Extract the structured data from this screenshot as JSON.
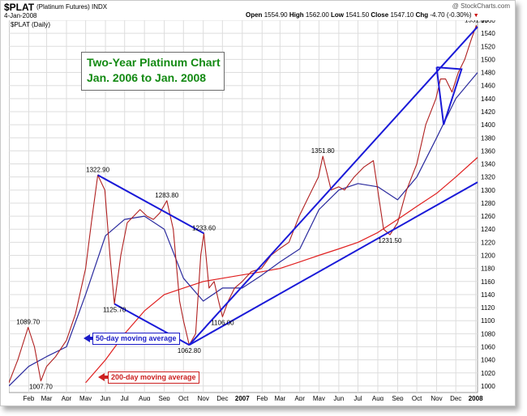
{
  "header": {
    "symbol": "$PLAT",
    "full_name": "(Platinum Futures)",
    "exchange": "INDX",
    "date": "4-Jan-2008",
    "open_label": "Open",
    "open_value": "1554.90",
    "high_label": "High",
    "high_value": "1562.00",
    "low_label": "Low",
    "low_value": "1541.50",
    "close_label": "Close",
    "close_value": "1547.10",
    "chg_label": "Chg",
    "chg_value": "-4.70 (-0.30%)",
    "watermark": "@ StockCharts.com",
    "series_label": "$PLAT (Daily)"
  },
  "annotations": {
    "title_line1": "Two-Year Platinum Chart",
    "title_line2": "Jan. 2006 to Jan. 2008",
    "ma50_label": "50-day moving average",
    "ma200_label": "200-day moving average"
  },
  "colors": {
    "price": "#b02020",
    "ma50": "#2a2a9e",
    "ma200": "#e02020",
    "trendline": "#1a1ad8",
    "title": "#138a13",
    "grid": "#dddddd"
  },
  "chart_data": {
    "type": "line",
    "title": "$PLAT (Daily)",
    "x_axis": {
      "tick_labels": [
        "Feb",
        "Mar",
        "Apr",
        "May",
        "Jun",
        "Jul",
        "Aug",
        "Sep",
        "Oct",
        "Nov",
        "Dec",
        "2007",
        "Feb",
        "Mar",
        "Apr",
        "May",
        "Jun",
        "Jul",
        "Aug",
        "Sep",
        "Oct",
        "Nov",
        "Dec",
        "2008"
      ],
      "range": [
        "2006-01-01",
        "2008-01-04"
      ]
    },
    "y_axis": {
      "position": "right",
      "ylim": [
        990,
        1560
      ],
      "ticks": [
        1000,
        1020,
        1040,
        1060,
        1080,
        1100,
        1120,
        1140,
        1160,
        1180,
        1200,
        1220,
        1240,
        1260,
        1280,
        1300,
        1320,
        1340,
        1360,
        1380,
        1400,
        1420,
        1440,
        1460,
        1480,
        1500,
        1520,
        1540,
        1560
      ]
    },
    "grid": true,
    "series": [
      {
        "role": "price",
        "x": [
          "2006-01-01",
          "2006-01-15",
          "2006-01-31",
          "2006-02-10",
          "2006-02-20",
          "2006-03-01",
          "2006-03-15",
          "2006-04-01",
          "2006-04-15",
          "2006-05-01",
          "2006-05-10",
          "2006-05-20",
          "2006-05-31",
          "2006-06-08",
          "2006-06-15",
          "2006-06-25",
          "2006-07-05",
          "2006-07-15",
          "2006-07-25",
          "2006-08-05",
          "2006-08-15",
          "2006-08-25",
          "2006-09-05",
          "2006-09-15",
          "2006-09-25",
          "2006-10-01",
          "2006-10-10",
          "2006-10-20",
          "2006-10-28",
          "2006-11-02",
          "2006-11-10",
          "2006-11-18",
          "2006-11-25",
          "2006-12-01",
          "2006-12-10",
          "2006-12-20",
          "2007-01-01",
          "2007-01-15",
          "2007-01-31",
          "2007-02-15",
          "2007-02-28",
          "2007-03-15",
          "2007-03-31",
          "2007-04-15",
          "2007-04-30",
          "2007-05-07",
          "2007-05-20",
          "2007-06-01",
          "2007-06-10",
          "2007-06-25",
          "2007-07-10",
          "2007-07-25",
          "2007-08-10",
          "2007-08-20",
          "2007-09-01",
          "2007-09-15",
          "2007-10-01",
          "2007-10-15",
          "2007-10-31",
          "2007-11-07",
          "2007-11-15",
          "2007-11-25",
          "2007-12-05",
          "2007-12-15",
          "2007-12-25",
          "2008-01-02",
          "2008-01-04"
        ],
        "values": [
          1005,
          1040,
          1089.7,
          1060,
          1007.7,
          1030,
          1045,
          1070,
          1110,
          1180,
          1250,
          1322.9,
          1300,
          1200,
          1125.7,
          1200,
          1250,
          1260,
          1270,
          1260,
          1255,
          1265,
          1283.8,
          1240,
          1130,
          1100,
          1062.8,
          1080,
          1200,
          1233.6,
          1150,
          1160,
          1130,
          1106,
          1130,
          1150,
          1160,
          1175,
          1180,
          1200,
          1210,
          1220,
          1260,
          1290,
          1320,
          1351.8,
          1300,
          1305,
          1300,
          1320,
          1335,
          1345,
          1240,
          1231.5,
          1250,
          1300,
          1340,
          1400,
          1440,
          1470,
          1470,
          1450,
          1480,
          1500,
          1530,
          1551.8,
          1547.1
        ]
      },
      {
        "name": "50-day moving average",
        "x": [
          "2006-01-01",
          "2006-02-01",
          "2006-03-01",
          "2006-04-01",
          "2006-05-01",
          "2006-06-01",
          "2006-07-01",
          "2006-08-01",
          "2006-09-01",
          "2006-10-01",
          "2006-11-01",
          "2006-12-01",
          "2007-01-01",
          "2007-02-01",
          "2007-03-01",
          "2007-04-01",
          "2007-05-01",
          "2007-06-01",
          "2007-07-01",
          "2007-08-01",
          "2007-09-01",
          "2007-10-01",
          "2007-11-01",
          "2007-12-01",
          "2008-01-04"
        ],
        "values": [
          1000,
          1030,
          1045,
          1060,
          1140,
          1230,
          1255,
          1260,
          1240,
          1165,
          1130,
          1150,
          1150,
          1170,
          1190,
          1210,
          1270,
          1300,
          1310,
          1305,
          1285,
          1320,
          1380,
          1440,
          1480
        ]
      },
      {
        "name": "200-day moving average",
        "x": [
          "2006-05-01",
          "2006-06-01",
          "2006-07-01",
          "2006-08-01",
          "2006-09-01",
          "2006-10-01",
          "2006-11-01",
          "2006-12-01",
          "2007-01-01",
          "2007-02-01",
          "2007-03-01",
          "2007-04-01",
          "2007-05-01",
          "2007-06-01",
          "2007-07-01",
          "2007-08-01",
          "2007-09-01",
          "2007-10-01",
          "2007-11-01",
          "2007-12-01",
          "2008-01-04"
        ],
        "values": [
          1005,
          1040,
          1080,
          1115,
          1140,
          1150,
          1160,
          1165,
          1170,
          1175,
          1180,
          1190,
          1200,
          1210,
          1220,
          1235,
          1255,
          1275,
          1295,
          1320,
          1350
        ]
      }
    ],
    "trendlines": [
      {
        "role": "upper",
        "points": [
          [
            "2006-10-10",
            1062.8
          ],
          [
            "2008-01-04",
            1550
          ]
        ]
      },
      {
        "role": "lower",
        "points": [
          [
            "2006-10-10",
            1062.8
          ],
          [
            "2008-01-04",
            1312
          ]
        ]
      },
      {
        "role": "fan",
        "points": [
          [
            "2006-05-20",
            1322.9
          ],
          [
            "2006-11-02",
            1233.6
          ]
        ]
      },
      {
        "role": "fan",
        "points": [
          [
            "2006-06-15",
            1125.7
          ],
          [
            "2006-10-10",
            1062.8
          ]
        ]
      },
      {
        "role": "triangle",
        "points": [
          [
            "2007-11-01",
            1488
          ],
          [
            "2007-12-10",
            1485
          ],
          [
            "2007-11-12",
            1400
          ],
          [
            "2007-11-01",
            1488
          ]
        ]
      }
    ],
    "labels": [
      {
        "x": "2006-01-31",
        "y": 1089.7,
        "text": "1089.70",
        "pos": "above"
      },
      {
        "x": "2006-02-20",
        "y": 1007.7,
        "text": "1007.70",
        "pos": "below"
      },
      {
        "x": "2006-05-20",
        "y": 1322.9,
        "text": "1322.90",
        "pos": "above"
      },
      {
        "x": "2006-06-15",
        "y": 1125.7,
        "text": "1125.70",
        "pos": "below"
      },
      {
        "x": "2006-09-05",
        "y": 1283.8,
        "text": "1283.80",
        "pos": "above"
      },
      {
        "x": "2006-10-10",
        "y": 1062.8,
        "text": "1062.80",
        "pos": "below"
      },
      {
        "x": "2006-11-02",
        "y": 1233.6,
        "text": "1233.60",
        "pos": "above"
      },
      {
        "x": "2006-12-01",
        "y": 1106,
        "text": "1106.00",
        "pos": "below"
      },
      {
        "x": "2007-05-07",
        "y": 1351.8,
        "text": "1351.80",
        "pos": "above"
      },
      {
        "x": "2007-08-20",
        "y": 1231.5,
        "text": "1231.50",
        "pos": "below"
      },
      {
        "x": "2008-01-02",
        "y": 1551.8,
        "text": "1551.80",
        "pos": "above"
      }
    ]
  }
}
